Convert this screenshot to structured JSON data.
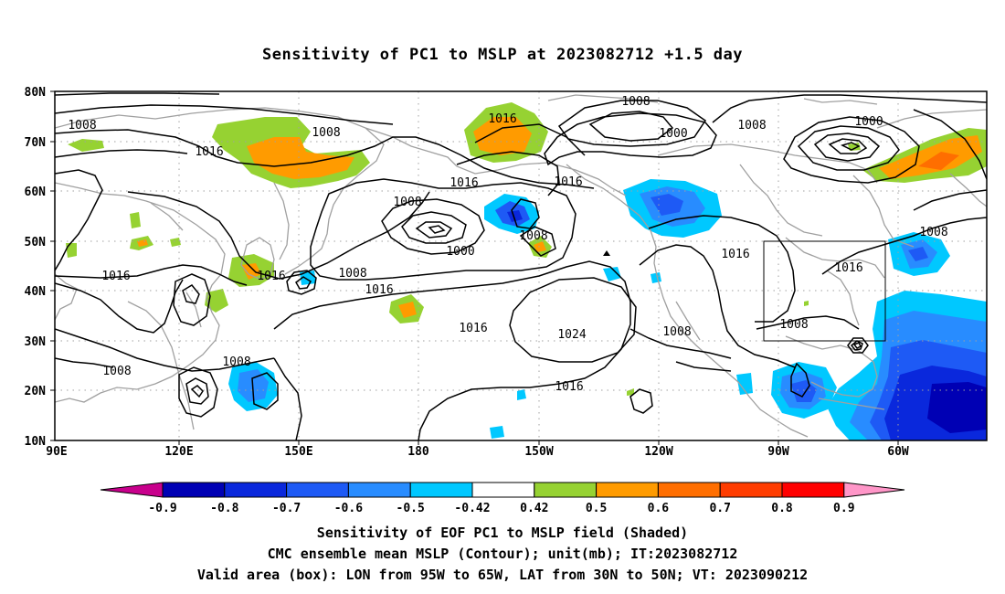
{
  "title": "Sensitivity of PC1 to MSLP at 2023082712 +1.5 day",
  "map": {
    "lat_labels": [
      "80N",
      "70N",
      "60N",
      "50N",
      "40N",
      "30N",
      "20N",
      "10N"
    ],
    "lon_labels": [
      "90E",
      "120E",
      "150E",
      "180",
      "150W",
      "120W",
      "90W",
      "60W"
    ],
    "extent": {
      "lon": [
        "90E",
        "50W"
      ],
      "lat": [
        "10N",
        "80N"
      ]
    },
    "grid": "dotted",
    "validation_box": {
      "lon": [
        "95W",
        "65W"
      ],
      "lat": [
        "30N",
        "50N"
      ]
    },
    "contour_labels": [
      {
        "text": "1008"
      },
      {
        "text": "1008"
      },
      {
        "text": "1016"
      },
      {
        "text": "1016"
      },
      {
        "text": "1016"
      },
      {
        "text": "1016"
      },
      {
        "text": "1008"
      },
      {
        "text": "1000"
      },
      {
        "text": "1008"
      },
      {
        "text": "1016"
      },
      {
        "text": "1016"
      },
      {
        "text": "1008"
      },
      {
        "text": "1016"
      },
      {
        "text": "1016"
      },
      {
        "text": "1024"
      },
      {
        "text": "1016"
      },
      {
        "text": "1008"
      },
      {
        "text": "1016"
      },
      {
        "text": "1008"
      },
      {
        "text": "1008"
      },
      {
        "text": "1000"
      },
      {
        "text": "1008"
      },
      {
        "text": "1000"
      },
      {
        "text": "1008"
      },
      {
        "text": "1008"
      },
      {
        "text": "1016"
      },
      {
        "text": "1008"
      }
    ]
  },
  "colorbar": {
    "colors": [
      "#c8008c",
      "#0000b4",
      "#0a28dc",
      "#1e5af5",
      "#288cff",
      "#00c8ff",
      "#ffffff",
      "#96d232",
      "#ff9b00",
      "#ff6e00",
      "#ff3c00",
      "#ff0000",
      "#ff96c8"
    ],
    "labels": [
      "-0.9",
      "-0.8",
      "-0.7",
      "-0.6",
      "-0.5",
      "-0.42",
      "0.42",
      "0.5",
      "0.6",
      "0.7",
      "0.8",
      "0.9"
    ]
  },
  "colors": {
    "contour": "#000000",
    "coastline": "#a0a0a0",
    "grid": "#a0a0a0"
  },
  "captions": {
    "line1": "Sensitivity of EOF PC1 to MSLP field (Shaded)",
    "line2": "CMC ensemble mean MSLP (Contour); unit(mb); IT:2023082712",
    "line3": "Valid area (box): LON from 95W to 65W, LAT from 30N to 50N; VT: 2023090212"
  }
}
